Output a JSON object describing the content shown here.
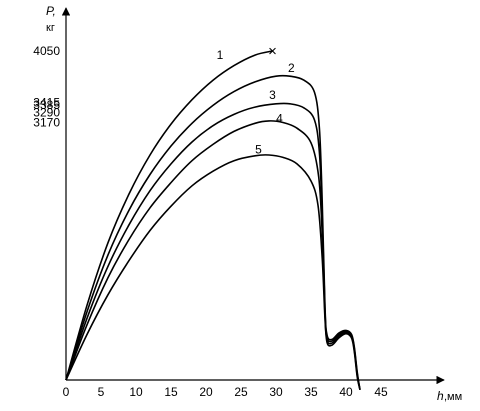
{
  "chart_data": {
    "type": "line",
    "ylabel": "P,",
    "yunit": "кг",
    "xlabel": "h",
    "xunit": ",мм",
    "x_ticks": [
      "0",
      "5",
      "10",
      "15",
      "20",
      "25",
      "30",
      "35",
      "40",
      "45"
    ],
    "y_ticks": [
      "4050",
      "3415",
      "3385",
      "3290",
      "3170"
    ],
    "xlim": [
      0,
      50
    ],
    "ylim": [
      0,
      4380
    ],
    "series": [
      {
        "label": "1",
        "end_marker": "×",
        "points": [
          [
            0,
            0
          ],
          [
            3,
            920
          ],
          [
            6,
            1690
          ],
          [
            9,
            2290
          ],
          [
            12,
            2770
          ],
          [
            15,
            3150
          ],
          [
            18,
            3450
          ],
          [
            21,
            3690
          ],
          [
            24,
            3870
          ],
          [
            27,
            4000
          ],
          [
            29.5,
            4050
          ]
        ]
      },
      {
        "label": "2",
        "points": [
          [
            0,
            0
          ],
          [
            3,
            840
          ],
          [
            6,
            1540
          ],
          [
            9,
            2090
          ],
          [
            12,
            2530
          ],
          [
            15,
            2880
          ],
          [
            18,
            3160
          ],
          [
            21,
            3380
          ],
          [
            24,
            3550
          ],
          [
            27,
            3670
          ],
          [
            30,
            3740
          ],
          [
            32,
            3740
          ],
          [
            34,
            3690
          ],
          [
            35.5,
            3540
          ],
          [
            36.2,
            3100
          ],
          [
            36.6,
            2200
          ],
          [
            37,
            900
          ],
          [
            37.3,
            550
          ],
          [
            38,
            500
          ],
          [
            39,
            580
          ],
          [
            40,
            610
          ],
          [
            40.8,
            560
          ],
          [
            41.2,
            400
          ],
          [
            41.6,
            100
          ],
          [
            42,
            -120
          ]
        ]
      },
      {
        "label": "3",
        "points": [
          [
            0,
            0
          ],
          [
            3,
            760
          ],
          [
            6,
            1400
          ],
          [
            9,
            1910
          ],
          [
            12,
            2330
          ],
          [
            15,
            2660
          ],
          [
            18,
            2930
          ],
          [
            21,
            3130
          ],
          [
            24,
            3270
          ],
          [
            27,
            3360
          ],
          [
            30,
            3400
          ],
          [
            32,
            3400
          ],
          [
            34,
            3350
          ],
          [
            35.5,
            3200
          ],
          [
            36.2,
            2800
          ],
          [
            36.6,
            2000
          ],
          [
            37,
            850
          ],
          [
            37.3,
            520
          ],
          [
            38,
            480
          ],
          [
            39,
            560
          ],
          [
            40,
            600
          ],
          [
            40.8,
            545
          ],
          [
            41.2,
            380
          ],
          [
            41.6,
            80
          ],
          [
            42,
            -120
          ]
        ]
      },
      {
        "label": "4",
        "points": [
          [
            0,
            0
          ],
          [
            3,
            680
          ],
          [
            6,
            1260
          ],
          [
            9,
            1730
          ],
          [
            12,
            2120
          ],
          [
            15,
            2430
          ],
          [
            18,
            2700
          ],
          [
            21,
            2900
          ],
          [
            24,
            3060
          ],
          [
            27,
            3160
          ],
          [
            29,
            3190
          ],
          [
            31,
            3170
          ],
          [
            33,
            3100
          ],
          [
            35,
            2920
          ],
          [
            36.1,
            2500
          ],
          [
            36.6,
            1800
          ],
          [
            37,
            800
          ],
          [
            37.3,
            490
          ],
          [
            38,
            455
          ],
          [
            39,
            540
          ],
          [
            40,
            585
          ],
          [
            40.8,
            530
          ],
          [
            41.2,
            360
          ],
          [
            41.6,
            60
          ],
          [
            42,
            -120
          ]
        ]
      },
      {
        "label": "5",
        "points": [
          [
            0,
            0
          ],
          [
            3,
            560
          ],
          [
            6,
            1050
          ],
          [
            9,
            1470
          ],
          [
            12,
            1840
          ],
          [
            15,
            2140
          ],
          [
            18,
            2390
          ],
          [
            21,
            2570
          ],
          [
            24,
            2700
          ],
          [
            27,
            2760
          ],
          [
            29,
            2770
          ],
          [
            31,
            2740
          ],
          [
            33,
            2660
          ],
          [
            35,
            2450
          ],
          [
            36,
            2150
          ],
          [
            36.6,
            1500
          ],
          [
            37,
            750
          ],
          [
            37.3,
            460
          ],
          [
            38,
            430
          ],
          [
            39,
            520
          ],
          [
            40,
            570
          ],
          [
            40.8,
            515
          ],
          [
            41.2,
            340
          ],
          [
            41.6,
            40
          ],
          [
            42,
            -120
          ]
        ]
      }
    ]
  }
}
